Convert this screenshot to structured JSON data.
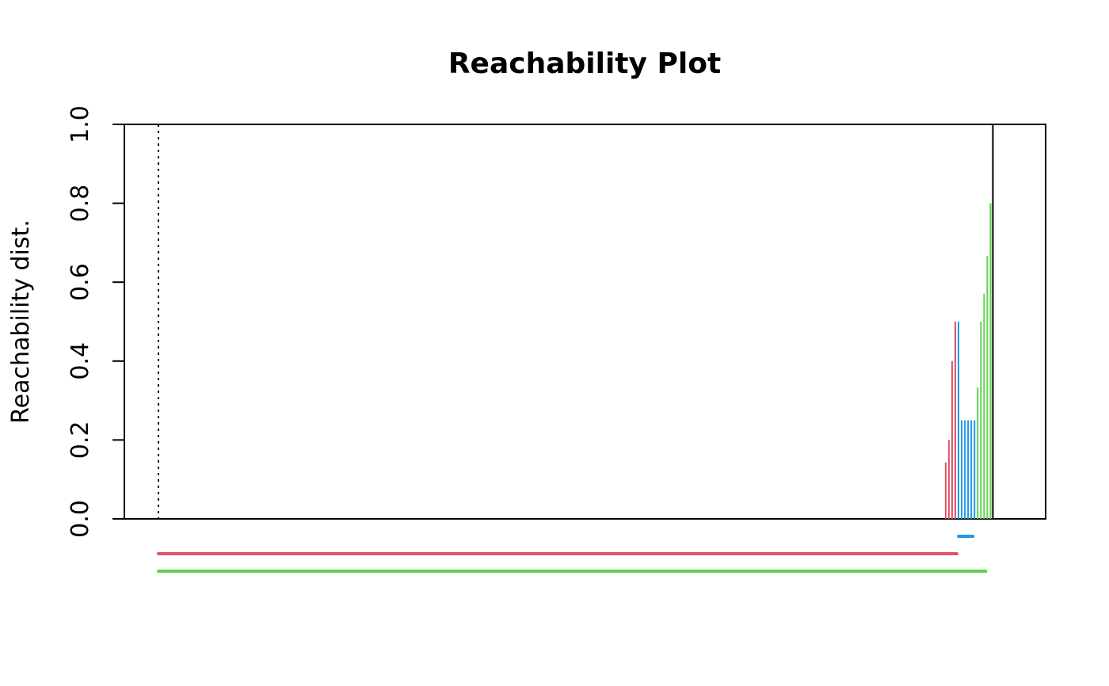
{
  "chart_data": {
    "type": "bar",
    "title": "Reachability Plot",
    "xlabel": "",
    "ylabel": "Reachability dist.",
    "ylim": [
      0,
      1
    ],
    "yticks": [
      "0.0",
      "0.2",
      "0.4",
      "0.6",
      "0.8",
      "1.0"
    ],
    "ytick_values": [
      0,
      0.2,
      0.4,
      0.6,
      0.8,
      1.0
    ],
    "xlim": [
      0,
      52.5
    ],
    "grid": false,
    "marker_line_at_x": 1,
    "colors": {
      "red": "#DF536B",
      "green": "#61D04F",
      "blue": "#2297E6",
      "black": "#000000"
    },
    "bars": [
      {
        "x": 50.2,
        "value": 0.143,
        "color": "#DF536B"
      },
      {
        "x": 50.4,
        "value": 0.2,
        "color": "#DF536B"
      },
      {
        "x": 50.6,
        "value": 0.4,
        "color": "#DF536B"
      },
      {
        "x": 50.8,
        "value": 0.5,
        "color": "#DF536B"
      },
      {
        "x": 51.0,
        "value": 0.5,
        "color": "#2297E6"
      },
      {
        "x": 51.2,
        "value": 0.25,
        "color": "#2297E6"
      },
      {
        "x": 51.4,
        "value": 0.25,
        "color": "#2297E6"
      },
      {
        "x": 51.6,
        "value": 0.25,
        "color": "#2297E6"
      },
      {
        "x": 51.8,
        "value": 0.25,
        "color": "#2297E6"
      },
      {
        "x": 52.0,
        "value": 0.25,
        "color": "#2297E6"
      },
      {
        "x": 52.2,
        "value": 0.333,
        "color": "#61D04F"
      },
      {
        "x": 52.4,
        "value": 0.5,
        "color": "#61D04F"
      },
      {
        "x": 52.6,
        "value": 0.571,
        "color": "#61D04F"
      },
      {
        "x": 52.8,
        "value": 0.667,
        "color": "#61D04F"
      },
      {
        "x": 53.0,
        "value": 0.8,
        "color": "#61D04F"
      }
    ],
    "clusters": [
      {
        "start": 51.0,
        "end": 51.9,
        "level": 1,
        "color": "#2297E6"
      },
      {
        "start": 1.0,
        "end": 50.9,
        "level": 2,
        "color": "#DF536B"
      },
      {
        "start": 1.0,
        "end": 52.7,
        "level": 3,
        "color": "#61D04F"
      }
    ]
  }
}
